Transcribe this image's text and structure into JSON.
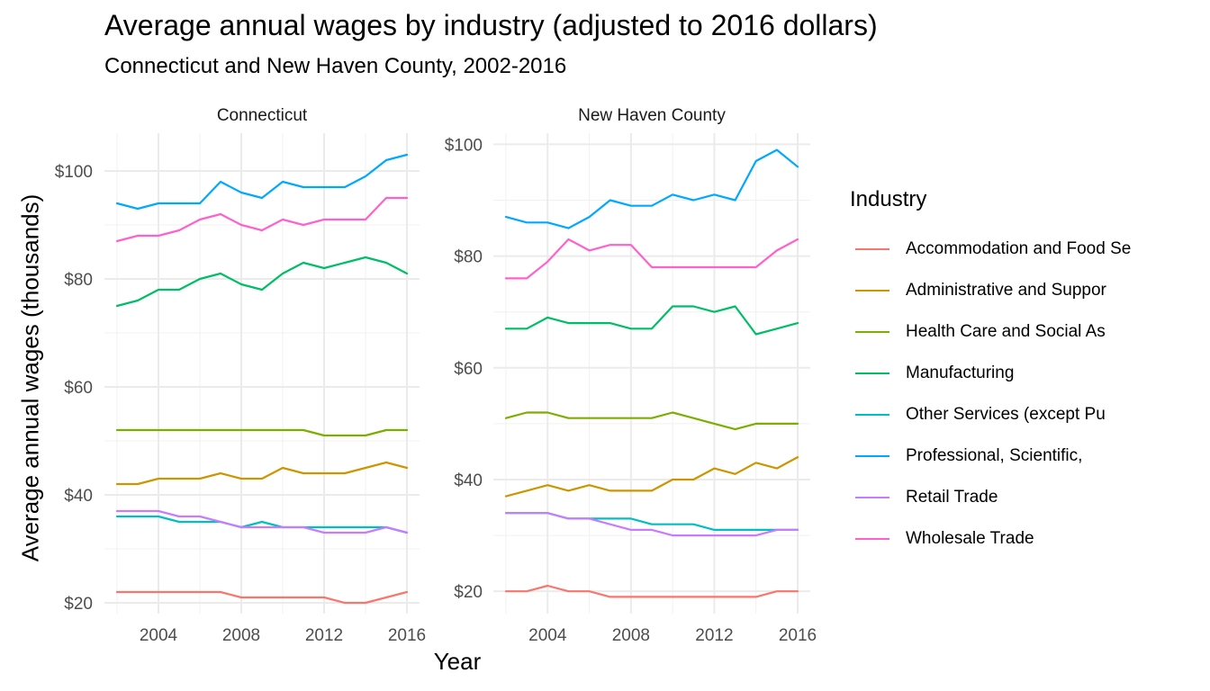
{
  "chart_data": {
    "type": "line",
    "title": "Average annual wages by industry (adjusted to 2016 dollars)",
    "subtitle": "Connecticut and New Haven County, 2002-2016",
    "xlabel": "Year",
    "ylabel": "Average annual wages (thousands)",
    "legend_title": "Industry",
    "legend_position": "right",
    "grid": true,
    "x": [
      2002,
      2003,
      2004,
      2005,
      2006,
      2007,
      2008,
      2009,
      2010,
      2011,
      2012,
      2013,
      2014,
      2015,
      2016
    ],
    "x_ticks": [
      "2004",
      "2008",
      "2012",
      "2016"
    ],
    "industries": [
      {
        "name": "Accommodation and Food Se",
        "color": "#F8766D"
      },
      {
        "name": "Administrative and Suppor",
        "color": "#CD9600"
      },
      {
        "name": "Health Care and Social As",
        "color": "#7CAE00"
      },
      {
        "name": "Manufacturing",
        "color": "#00BE67"
      },
      {
        "name": "Other Services (except Pu",
        "color": "#00BFC4"
      },
      {
        "name": "Professional, Scientific,",
        "color": "#00A9FF"
      },
      {
        "name": "Retail Trade",
        "color": "#C77CFF"
      },
      {
        "name": "Wholesale Trade",
        "color": "#FF61CC"
      }
    ],
    "panels": [
      {
        "name": "Connecticut",
        "ylim": [
          18,
          107
        ],
        "y_ticks": [
          "$20",
          "$40",
          "$60",
          "$80",
          "$100"
        ],
        "series": [
          {
            "name": "Accommodation and Food Se",
            "values": [
              22,
              22,
              22,
              22,
              22,
              22,
              21,
              21,
              21,
              21,
              21,
              20,
              20,
              21,
              22
            ]
          },
          {
            "name": "Administrative and Suppor",
            "values": [
              42,
              42,
              43,
              43,
              43,
              44,
              43,
              43,
              45,
              44,
              44,
              44,
              45,
              46,
              45
            ]
          },
          {
            "name": "Health Care and Social As",
            "values": [
              52,
              52,
              52,
              52,
              52,
              52,
              52,
              52,
              52,
              52,
              51,
              51,
              51,
              52,
              52
            ]
          },
          {
            "name": "Manufacturing",
            "values": [
              75,
              76,
              78,
              78,
              80,
              81,
              79,
              78,
              81,
              83,
              82,
              83,
              84,
              83,
              81
            ]
          },
          {
            "name": "Other Services (except Pu",
            "values": [
              36,
              36,
              36,
              35,
              35,
              35,
              34,
              35,
              34,
              34,
              34,
              34,
              34,
              34,
              33
            ]
          },
          {
            "name": "Professional, Scientific,",
            "values": [
              94,
              93,
              94,
              94,
              94,
              98,
              96,
              95,
              98,
              97,
              97,
              97,
              99,
              102,
              103
            ]
          },
          {
            "name": "Retail Trade",
            "values": [
              37,
              37,
              37,
              36,
              36,
              35,
              34,
              34,
              34,
              34,
              33,
              33,
              33,
              34,
              33
            ]
          },
          {
            "name": "Wholesale Trade",
            "values": [
              87,
              88,
              88,
              89,
              91,
              92,
              90,
              89,
              91,
              90,
              91,
              91,
              91,
              95,
              95
            ]
          }
        ]
      },
      {
        "name": "New Haven County",
        "ylim": [
          16,
          102
        ],
        "y_ticks": [
          "$20",
          "$40",
          "$60",
          "$80",
          "$100"
        ],
        "series": [
          {
            "name": "Accommodation and Food Se",
            "values": [
              20,
              20,
              21,
              20,
              20,
              19,
              19,
              19,
              19,
              19,
              19,
              19,
              19,
              20,
              20
            ]
          },
          {
            "name": "Administrative and Suppor",
            "values": [
              37,
              38,
              39,
              38,
              39,
              38,
              38,
              38,
              40,
              40,
              42,
              41,
              43,
              42,
              44
            ]
          },
          {
            "name": "Health Care and Social As",
            "values": [
              51,
              52,
              52,
              51,
              51,
              51,
              51,
              51,
              52,
              51,
              50,
              49,
              50,
              50,
              50
            ]
          },
          {
            "name": "Manufacturing",
            "values": [
              67,
              67,
              69,
              68,
              68,
              68,
              67,
              67,
              71,
              71,
              70,
              71,
              66,
              67,
              68
            ]
          },
          {
            "name": "Other Services (except Pu",
            "values": [
              34,
              34,
              34,
              33,
              33,
              33,
              33,
              32,
              32,
              32,
              31,
              31,
              31,
              31,
              31
            ]
          },
          {
            "name": "Professional, Scientific,",
            "values": [
              87,
              86,
              86,
              85,
              87,
              90,
              89,
              89,
              91,
              90,
              91,
              90,
              97,
              99,
              96
            ]
          },
          {
            "name": "Retail Trade",
            "values": [
              34,
              34,
              34,
              33,
              33,
              32,
              31,
              31,
              30,
              30,
              30,
              30,
              30,
              31,
              31
            ]
          },
          {
            "name": "Wholesale Trade",
            "values": [
              76,
              76,
              79,
              83,
              81,
              82,
              82,
              78,
              78,
              78,
              78,
              78,
              78,
              81,
              83
            ]
          }
        ]
      }
    ]
  }
}
